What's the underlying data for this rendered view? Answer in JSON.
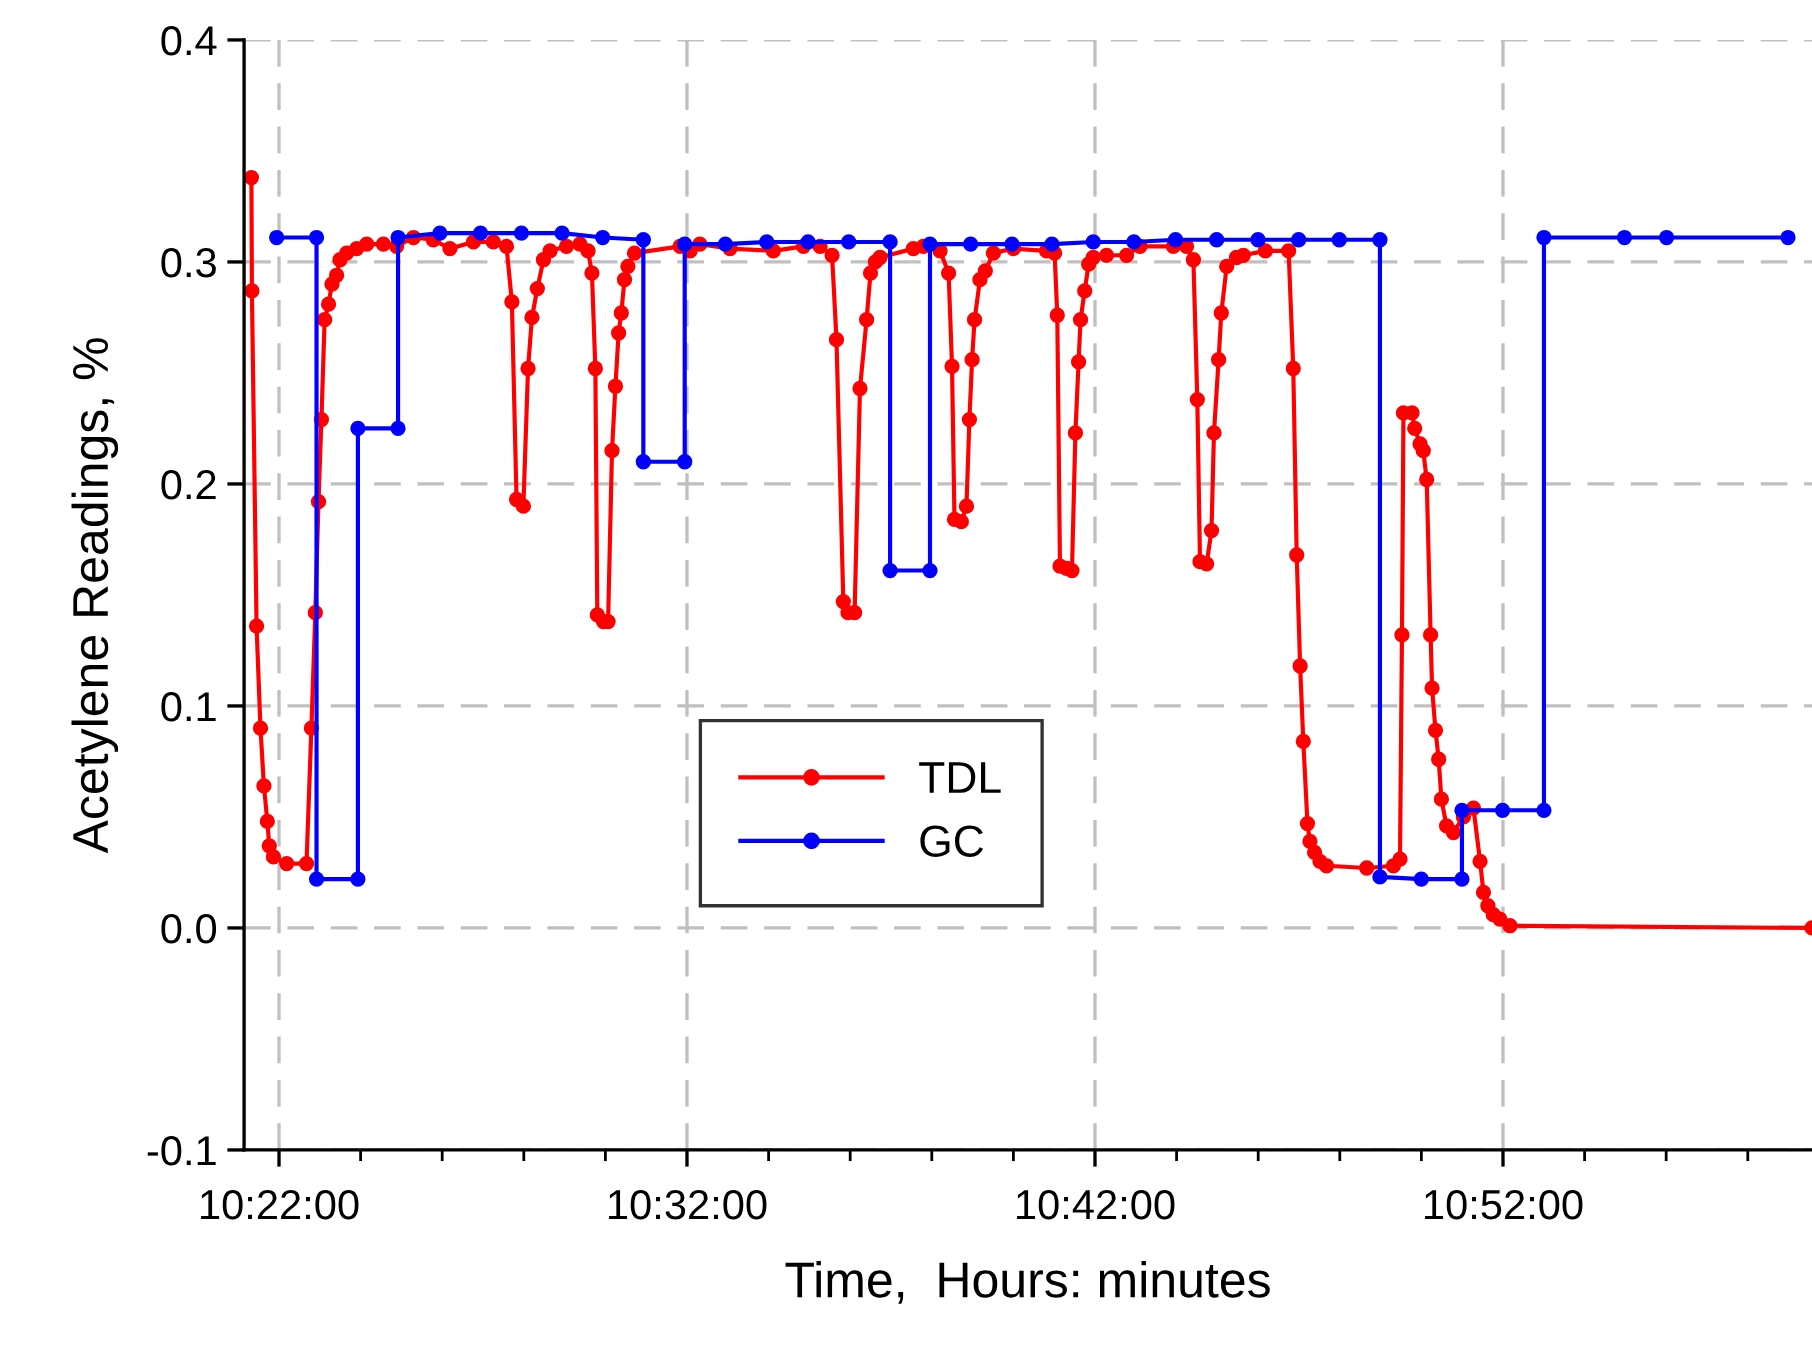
{
  "chart_data": {
    "type": "line",
    "xlabel": "Time,  Hours: minutes",
    "ylabel": "Acetylene Readings, %",
    "xlim": [
      10.3524,
      10.9929
    ],
    "ylim": [
      -0.1,
      0.4
    ],
    "xticks": [
      {
        "value": 10.36667,
        "label": "10:22:00"
      },
      {
        "value": 10.4,
        "label": null
      },
      {
        "value": 10.43333,
        "label": null
      },
      {
        "value": 10.46667,
        "label": null
      },
      {
        "value": 10.5,
        "label": null
      },
      {
        "value": 10.53333,
        "label": "10:32:00"
      },
      {
        "value": 10.56667,
        "label": null
      },
      {
        "value": 10.6,
        "label": null
      },
      {
        "value": 10.63333,
        "label": null
      },
      {
        "value": 10.66667,
        "label": null
      },
      {
        "value": 10.7,
        "label": "10:42:00"
      },
      {
        "value": 10.73333,
        "label": null
      },
      {
        "value": 10.76667,
        "label": null
      },
      {
        "value": 10.8,
        "label": null
      },
      {
        "value": 10.83333,
        "label": null
      },
      {
        "value": 10.86667,
        "label": "10:52:00"
      },
      {
        "value": 10.9,
        "label": null
      },
      {
        "value": 10.93333,
        "label": null
      },
      {
        "value": 10.96667,
        "label": null
      }
    ],
    "yticks": [
      {
        "value": -0.1,
        "label": "-0.1"
      },
      {
        "value": 0,
        "label": "0.0"
      },
      {
        "value": 0.1,
        "label": "0.1"
      },
      {
        "value": 0.2,
        "label": "0.2"
      },
      {
        "value": 0.3,
        "label": "0.3"
      },
      {
        "value": 0.4,
        "label": "0.4"
      }
    ],
    "grid": true,
    "legend": "lower center",
    "marker": "circle",
    "line_style": "solid",
    "series": [
      {
        "name": "TDL",
        "color": "#ff0000",
        "x": [
          10.3554,
          10.3556,
          10.3575,
          10.3591,
          10.3605,
          10.3619,
          10.3627,
          10.3644,
          10.3698,
          10.3779,
          10.3799,
          10.3815,
          10.3828,
          10.384,
          10.3853,
          10.3869,
          10.3883,
          10.3902,
          10.3916,
          10.3943,
          10.3984,
          10.4025,
          10.4093,
          10.4147,
          10.4216,
          10.4297,
          10.4365,
          10.4461,
          10.4542,
          10.4596,
          10.4618,
          10.4637,
          10.4665,
          10.4684,
          10.47,
          10.4722,
          10.4747,
          10.4774,
          10.4841,
          10.4896,
          10.4929,
          10.4945,
          10.4959,
          10.4967,
          10.4992,
          10.5011,
          10.5027,
          10.5041,
          10.5054,
          10.5065,
          10.5078,
          10.5092,
          10.5119,
          10.5305,
          10.5346,
          10.5386,
          10.5509,
          10.5686,
          10.5809,
          10.5877,
          10.5926,
          10.5944,
          10.5972,
          10.5991,
          10.6018,
          10.604,
          10.6067,
          10.6083,
          10.6103,
          10.6122,
          10.6258,
          10.6299,
          10.6367,
          10.6402,
          10.6416,
          10.6426,
          10.6454,
          10.6475,
          10.6487,
          10.6498,
          10.6508,
          10.653,
          10.6552,
          10.6585,
          10.6667,
          10.6802,
          10.6835,
          10.6846,
          10.6857,
          10.6884,
          10.6906,
          10.692,
          10.6933,
          10.6941,
          10.6958,
          10.6974,
          10.6993,
          10.7047,
          10.7129,
          10.7184,
          10.732,
          10.7374,
          10.7402,
          10.7418,
          10.7429,
          10.7456,
          10.7476,
          10.7486,
          10.7505,
          10.7516,
          10.7538,
          10.7578,
          10.7606,
          10.7696,
          10.7791,
          10.781,
          10.7824,
          10.7838,
          10.7851,
          10.7868,
          10.7878,
          10.7897,
          10.7919,
          10.7946,
          10.811,
          10.8219,
          10.8246,
          10.8254,
          10.826,
          10.8295,
          10.8306,
          10.8328,
          10.8341,
          10.8355,
          10.8371,
          10.8377,
          10.8391,
          10.8404,
          10.8415,
          10.8436,
          10.8464,
          10.8505,
          10.8546,
          10.8573,
          10.8587,
          10.8605,
          10.8627,
          10.8654,
          10.8695,
          10.9929
        ],
        "values": [
          0.338,
          0.287,
          0.136,
          0.09,
          0.064,
          0.048,
          0.037,
          0.032,
          0.029,
          0.029,
          0.09,
          0.142,
          0.192,
          0.229,
          0.274,
          0.281,
          0.29,
          0.294,
          0.301,
          0.304,
          0.306,
          0.308,
          0.308,
          0.307,
          0.311,
          0.31,
          0.306,
          0.309,
          0.309,
          0.307,
          0.282,
          0.193,
          0.19,
          0.252,
          0.275,
          0.288,
          0.301,
          0.305,
          0.307,
          0.308,
          0.305,
          0.295,
          0.252,
          0.141,
          0.138,
          0.138,
          0.215,
          0.244,
          0.268,
          0.277,
          0.292,
          0.298,
          0.304,
          0.307,
          0.305,
          0.308,
          0.306,
          0.305,
          0.307,
          0.307,
          0.303,
          0.265,
          0.147,
          0.142,
          0.142,
          0.243,
          0.274,
          0.295,
          0.3,
          0.302,
          0.306,
          0.307,
          0.305,
          0.295,
          0.253,
          0.184,
          0.183,
          0.19,
          0.229,
          0.256,
          0.274,
          0.292,
          0.296,
          0.304,
          0.306,
          0.305,
          0.304,
          0.276,
          0.163,
          0.162,
          0.161,
          0.223,
          0.255,
          0.274,
          0.287,
          0.299,
          0.302,
          0.303,
          0.303,
          0.307,
          0.307,
          0.307,
          0.301,
          0.238,
          0.165,
          0.164,
          0.179,
          0.223,
          0.256,
          0.277,
          0.298,
          0.302,
          0.303,
          0.305,
          0.305,
          0.252,
          0.168,
          0.118,
          0.084,
          0.047,
          0.039,
          0.034,
          0.03,
          0.028,
          0.027,
          0.028,
          0.031,
          0.132,
          0.232,
          0.232,
          0.225,
          0.218,
          0.215,
          0.202,
          0.132,
          0.108,
          0.089,
          0.076,
          0.058,
          0.046,
          0.043,
          0.05,
          0.054,
          0.03,
          0.016,
          0.01,
          0.006,
          0.004,
          0.001,
          0.0
        ]
      },
      {
        "name": "GC",
        "color": "#0000ff",
        "x": [
          10.3657,
          10.382,
          10.382,
          10.3989,
          10.3989,
          10.4153,
          10.4153,
          10.4324,
          10.449,
          10.4657,
          10.4823,
          10.4989,
          10.5155,
          10.5155,
          10.5324,
          10.5324,
          10.549,
          10.5659,
          10.5828,
          10.5994,
          10.6163,
          10.6163,
          10.6326,
          10.6326,
          10.6492,
          10.6661,
          10.6824,
          10.6993,
          10.7159,
          10.7329,
          10.7497,
          10.7666,
          10.7832,
          10.7998,
          10.8164,
          10.8164,
          10.8333,
          10.8499,
          10.8499,
          10.8665,
          10.8834,
          10.8834,
          10.9163,
          10.9335,
          10.9831
        ],
        "values": [
          0.311,
          0.311,
          0.022,
          0.022,
          0.225,
          0.225,
          0.311,
          0.313,
          0.313,
          0.313,
          0.313,
          0.311,
          0.31,
          0.21,
          0.21,
          0.308,
          0.308,
          0.309,
          0.309,
          0.309,
          0.309,
          0.161,
          0.161,
          0.308,
          0.308,
          0.308,
          0.308,
          0.309,
          0.309,
          0.31,
          0.31,
          0.31,
          0.31,
          0.31,
          0.31,
          0.023,
          0.022,
          0.022,
          0.053,
          0.053,
          0.053,
          0.311,
          0.311,
          0.311,
          0.311
        ]
      }
    ]
  }
}
